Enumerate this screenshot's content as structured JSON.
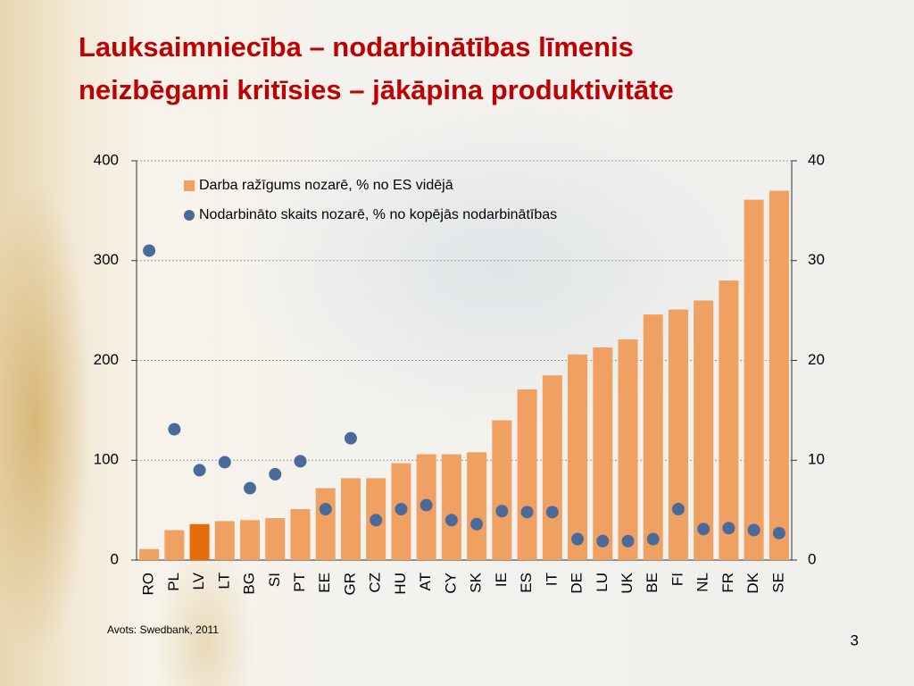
{
  "chart_data": {
    "type": "bar_scatter",
    "title": [
      "Lauksaimniecība – nodarbinātības līmenis",
      "neizbēgami kritīsies – jākāpina produktivitāte"
    ],
    "categories": [
      "RO",
      "PL",
      "LV",
      "LT",
      "BG",
      "SI",
      "PT",
      "EE",
      "GR",
      "CZ",
      "HU",
      "AT",
      "CY",
      "SK",
      "IE",
      "ES",
      "IT",
      "DE",
      "LU",
      "UK",
      "BE",
      "FI",
      "NL",
      "FR",
      "DK",
      "SE"
    ],
    "series": [
      {
        "name": "Darba ražīgums nozarē, % no ES vidējā",
        "kind": "bar",
        "color": "#f0a060",
        "values": [
          11,
          30,
          36,
          39,
          40,
          42,
          51,
          72,
          82,
          82,
          97,
          106,
          106,
          108,
          140,
          171,
          185,
          206,
          213,
          221,
          246,
          251,
          260,
          280,
          361,
          370
        ]
      },
      {
        "name": "Nodarbināto skaits nozarē, % no kopējās nodarbinātības",
        "kind": "dot",
        "color": "#4a6a9a",
        "axis": "y2",
        "values": [
          31.0,
          13.1,
          9.0,
          9.8,
          7.2,
          8.6,
          9.9,
          5.1,
          12.2,
          4.0,
          5.1,
          5.5,
          4.0,
          3.6,
          4.9,
          4.8,
          4.8,
          2.1,
          1.9,
          1.9,
          2.1,
          5.1,
          3.1,
          3.2,
          3.0,
          2.7
        ]
      }
    ],
    "highlight": {
      "category": "LV",
      "color": "#e46c0a"
    },
    "ylim": [
      0,
      400
    ],
    "yticks": [
      0,
      100,
      200,
      300,
      400
    ],
    "y2lim": [
      0,
      40
    ],
    "y2ticks": [
      0,
      10,
      20,
      30,
      40
    ],
    "grid": true,
    "source": "Avots: Swedbank, 2011",
    "page_number": "3"
  }
}
